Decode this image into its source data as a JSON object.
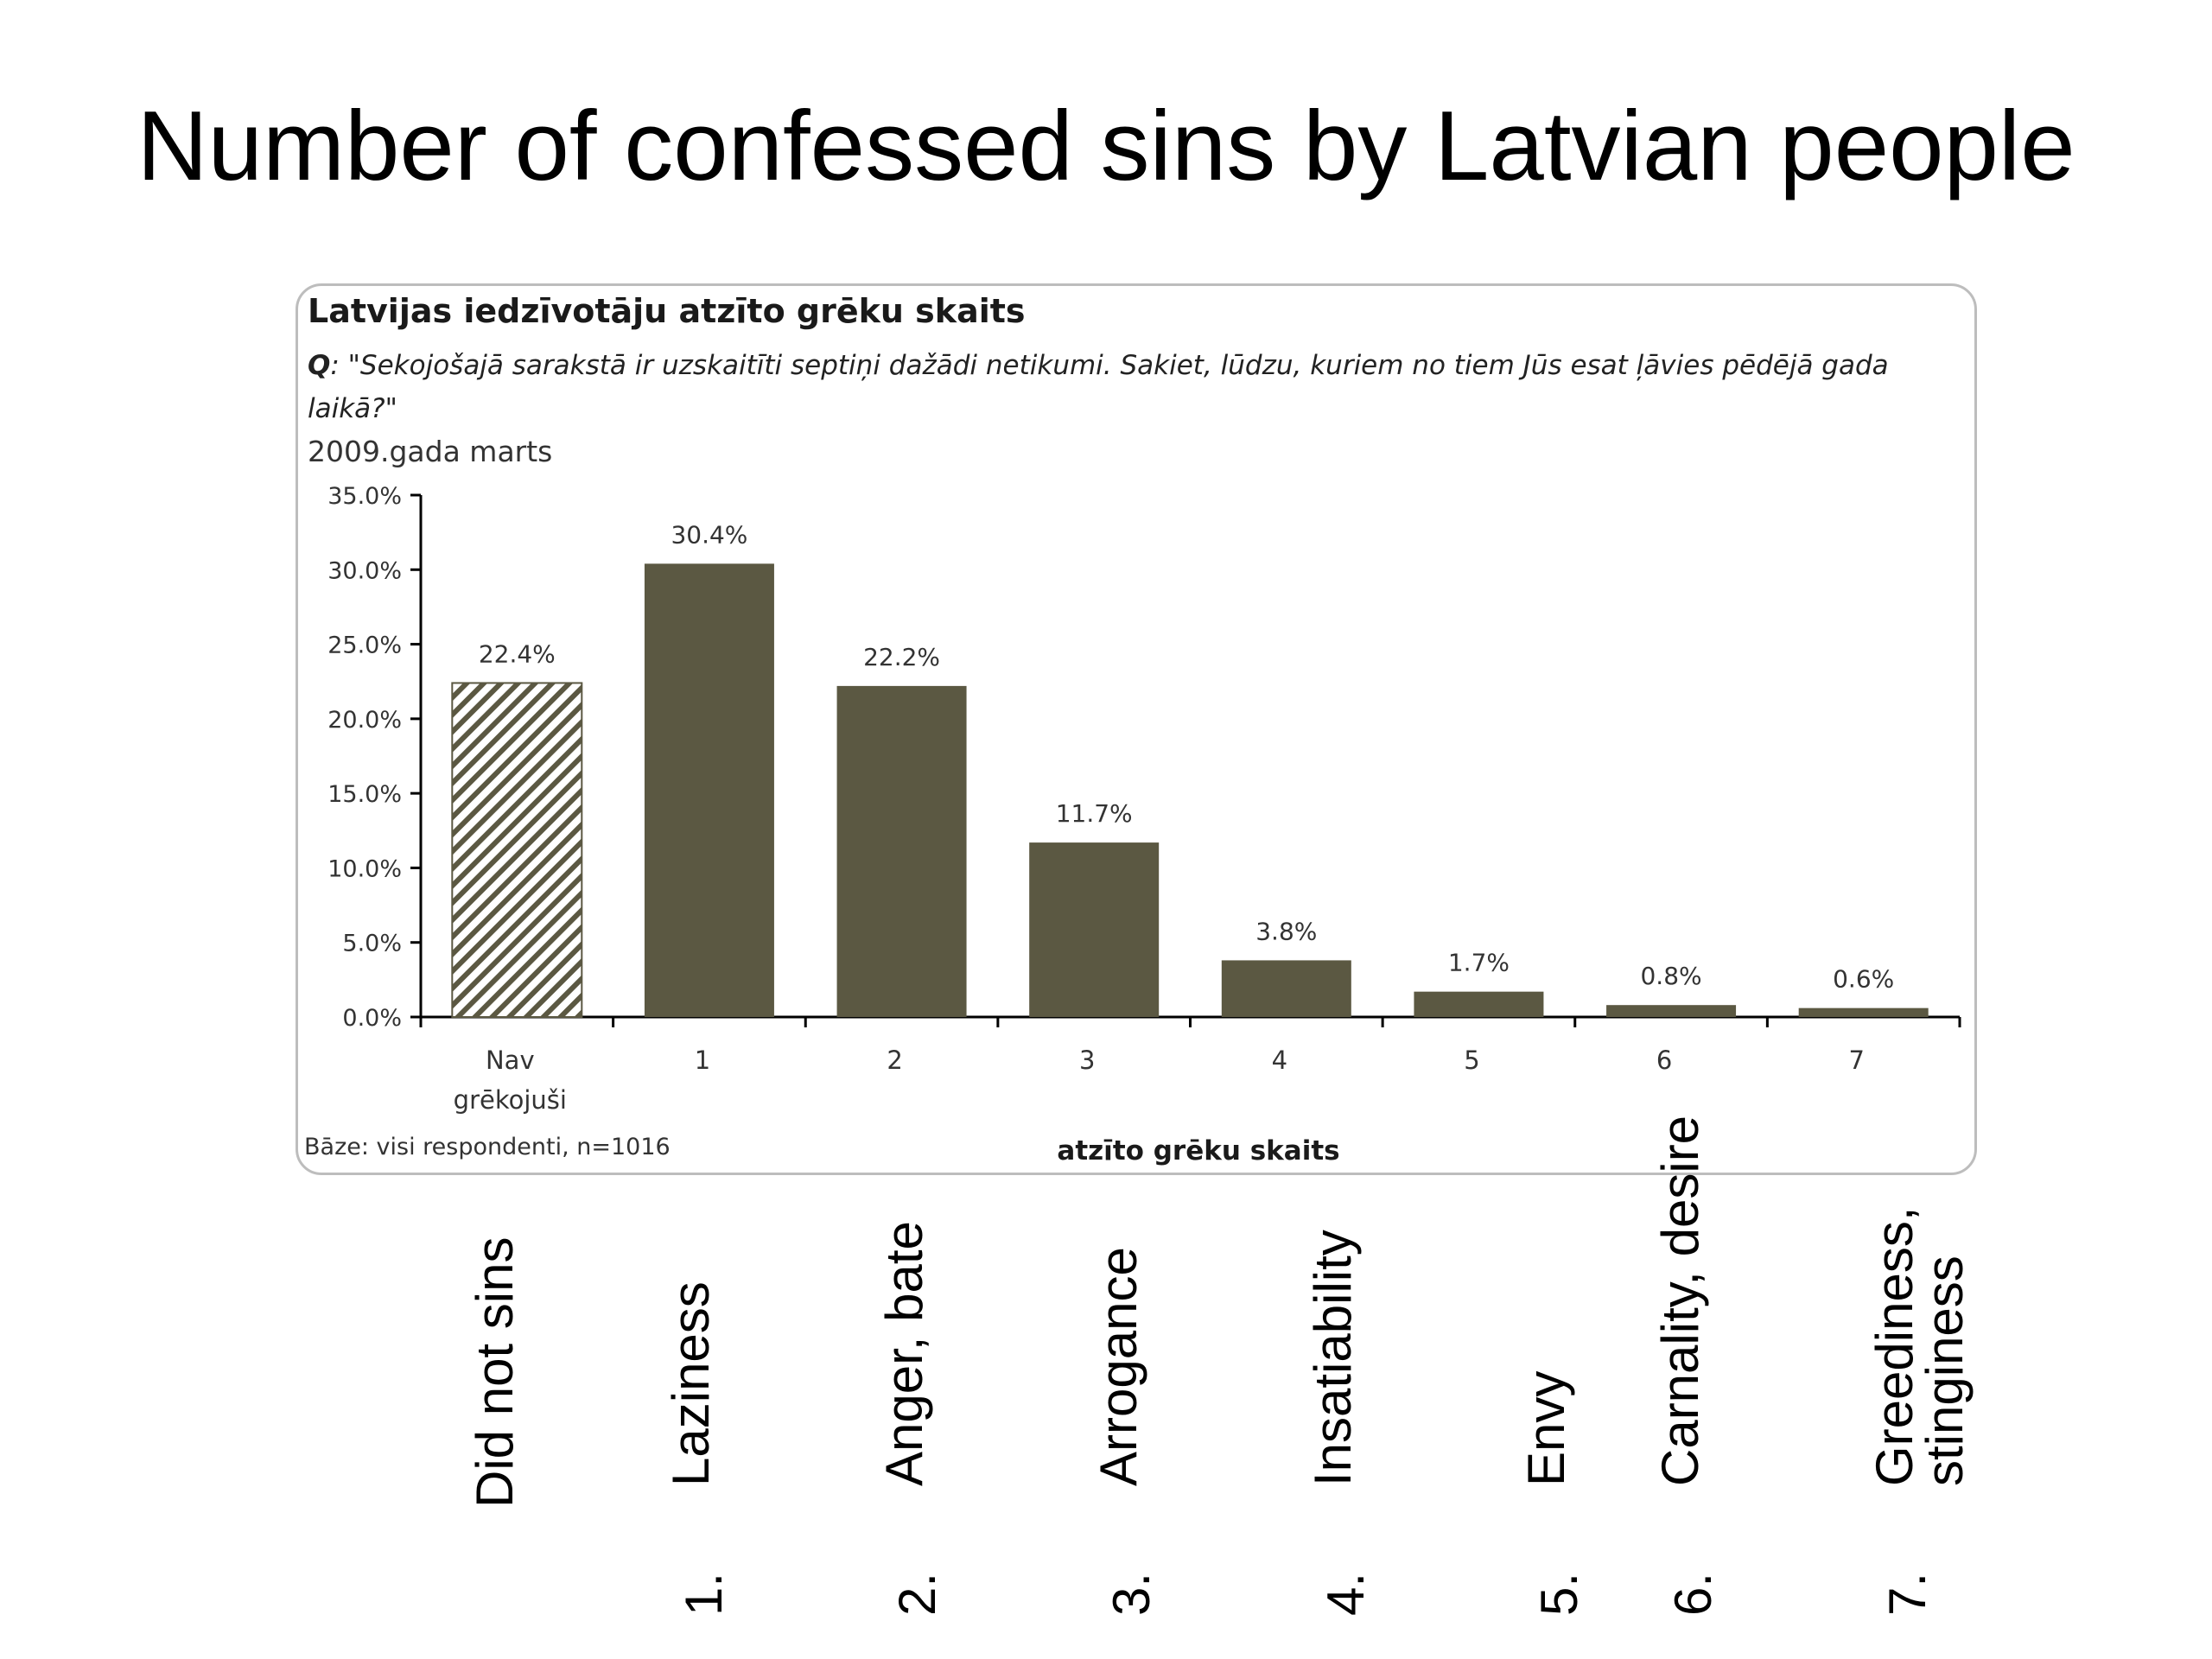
{
  "slide": {
    "title": "Number of confessed sins by Latvian people"
  },
  "chart_box": {
    "title": "Latvijas iedzīvotāju atzīto grēku skaits",
    "question_prefix": "Q",
    "question": ": \"Sekojošajā sarakstā ir uzskaitīti septiņi dažādi netikumi. Sakiet, lūdzu, kuriem no tiem Jūs esat ļāvies pēdējā gada laikā?\"",
    "date": "2009.gada marts",
    "base": "Bāze: visi respondenti, n=1016"
  },
  "chart_data": {
    "type": "bar",
    "categories": [
      "Nav grēkojuši",
      "1",
      "2",
      "3",
      "4",
      "5",
      "6",
      "7"
    ],
    "values": [
      22.4,
      30.4,
      22.2,
      11.7,
      3.8,
      1.7,
      0.8,
      0.6
    ],
    "data_labels": [
      "22.4%",
      "30.4%",
      "22.2%",
      "11.7%",
      "3.8%",
      "1.7%",
      "0.8%",
      "0.6%"
    ],
    "title": "Latvijas iedzīvotāju atzīto grēku skaits",
    "xlabel": "atzīto grēku skaits",
    "ylabel": "",
    "ylim": [
      0,
      35
    ],
    "yticks": [
      "0.0%",
      "5.0%",
      "10.0%",
      "15.0%",
      "20.0%",
      "25.0%",
      "30.0%",
      "35.0%"
    ],
    "grid": false,
    "legend": "none",
    "bar_color": "#5b5842",
    "first_bar_pattern": "hatched"
  },
  "english_labels": [
    {
      "num": "",
      "label": "Did not sins"
    },
    {
      "num": "1.",
      "label": "Laziness"
    },
    {
      "num": "2.",
      "label": "Anger, bate"
    },
    {
      "num": "3.",
      "label": "Arrogance"
    },
    {
      "num": "4.",
      "label": "Insatiability"
    },
    {
      "num": "5.",
      "label": "Envy"
    },
    {
      "num": "6.",
      "label": "Carnality, desire"
    },
    {
      "num": "7.",
      "label": "Greediness,\nstinginess"
    }
  ]
}
